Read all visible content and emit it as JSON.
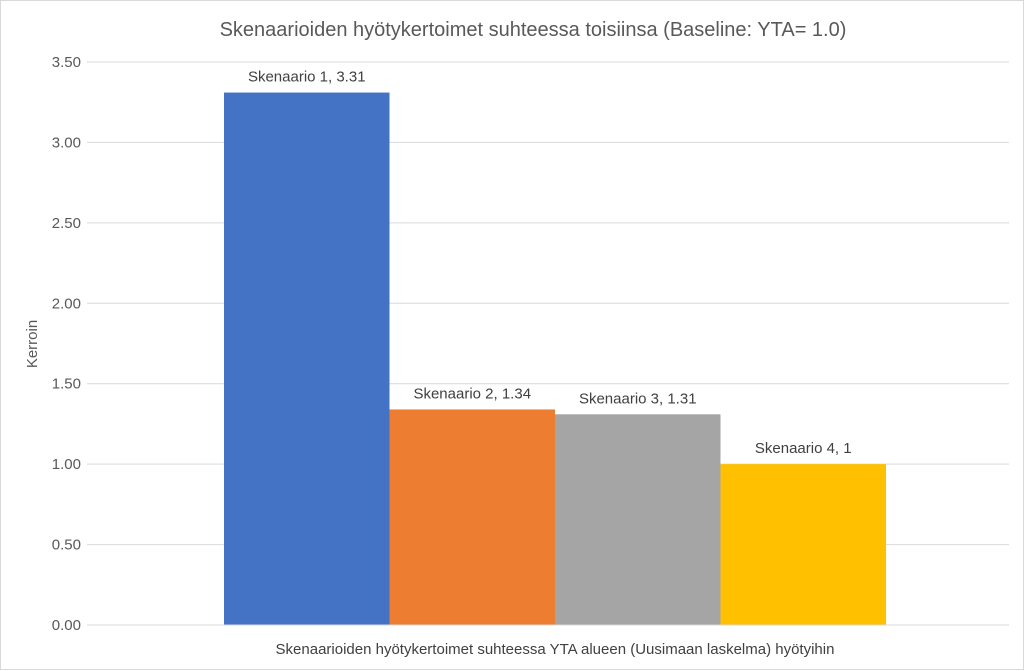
{
  "chart_data": {
    "type": "bar",
    "title": "Skenaarioiden hyötykertoimet suhteessa toisiinsa (Baseline: YTA= 1.0)",
    "xlabel": "",
    "ylabel": "Kerroin",
    "category_label": "Skenaarioiden hyötykertoimet suhteessa YTA alueen (Uusimaan laskelma) hyötyihin",
    "ylim": [
      0,
      3.5
    ],
    "yticks": [
      "0.00",
      "0.50",
      "1.00",
      "1.50",
      "2.00",
      "2.50",
      "3.00",
      "3.50"
    ],
    "grid": true,
    "series": [
      {
        "name": "Skenaario 1",
        "values": [
          3.31
        ],
        "color": "#4472C4",
        "label": "Skenaario 1, 3.31"
      },
      {
        "name": "Skenaario 2",
        "values": [
          1.34
        ],
        "color": "#ED7D31",
        "label": "Skenaario 2, 1.34"
      },
      {
        "name": "Skenaario 3",
        "values": [
          1.31
        ],
        "color": "#A5A5A5",
        "label": "Skenaario 3, 1.31"
      },
      {
        "name": "Skenaario 4",
        "values": [
          1.0
        ],
        "color": "#FFC000",
        "label": "Skenaario 4, 1"
      }
    ]
  }
}
